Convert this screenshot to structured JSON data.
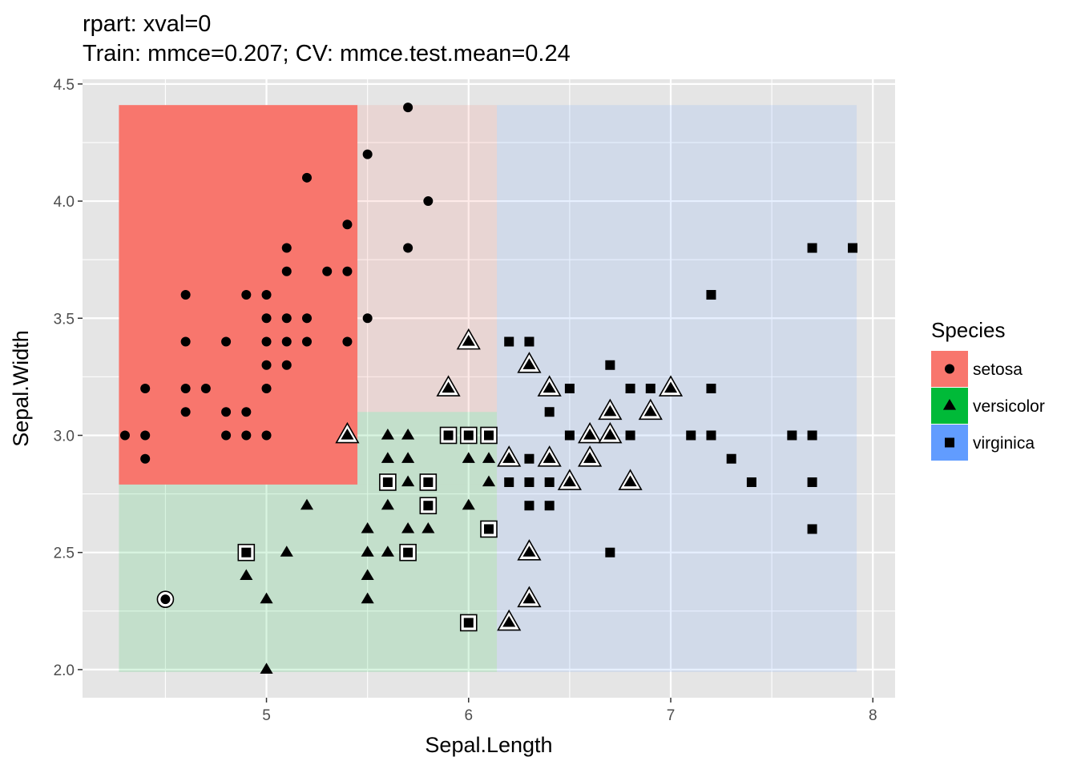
{
  "chart_data": {
    "type": "scatter",
    "title": "rpart: xval=0",
    "subtitle": "Train: mmce=0.207; CV: mmce.test.mean=0.24",
    "xlabel": "Sepal.Length",
    "ylabel": "Sepal.Width",
    "xlim": [
      4.09,
      8.11
    ],
    "ylim": [
      1.88,
      4.52
    ],
    "x_ticks": [
      5,
      6,
      7,
      8
    ],
    "x_tick_labels": [
      "5",
      "6",
      "7",
      "8"
    ],
    "y_ticks": [
      2.0,
      2.5,
      3.0,
      3.5,
      4.0,
      4.5
    ],
    "y_tick_labels": [
      "2.0",
      "2.5",
      "3.0",
      "3.5",
      "4.0",
      "4.5"
    ],
    "grid": true,
    "legend": {
      "title": "Species",
      "placement": "right",
      "entries": [
        {
          "label": "setosa",
          "shape": "circle",
          "color": "#f8766d"
        },
        {
          "label": "versicolor",
          "shape": "triangle",
          "color": "#00ba38"
        },
        {
          "label": "virginica",
          "shape": "square",
          "color": "#619cff"
        }
      ]
    },
    "colors": {
      "setosa": "#f8766d",
      "versicolor": "#00ba38",
      "virginica": "#619cff",
      "panel_background": "#e5e5e5",
      "grid": "#ffffff"
    },
    "regions": [
      {
        "class": "setosa",
        "x": [
          4.27,
          5.45
        ],
        "y": [
          2.79,
          4.41
        ],
        "alpha": 1.0
      },
      {
        "class": "setosa",
        "x": [
          5.45,
          6.14
        ],
        "y": [
          3.1,
          4.41
        ],
        "alpha": 0.15
      },
      {
        "class": "versicolor",
        "x": [
          4.27,
          6.14
        ],
        "y": [
          1.99,
          2.79
        ],
        "alpha": 0.15
      },
      {
        "class": "versicolor",
        "x": [
          5.45,
          6.14
        ],
        "y": [
          2.79,
          3.1
        ],
        "alpha": 0.15
      },
      {
        "class": "virginica",
        "x": [
          6.14,
          7.92
        ],
        "y": [
          1.99,
          4.41
        ],
        "alpha": 0.15
      }
    ],
    "series": [
      {
        "name": "setosa",
        "shape": "circle",
        "points": [
          [
            5.7,
            4.4
          ],
          [
            5.5,
            4.2
          ],
          [
            5.2,
            4.1
          ],
          [
            5.8,
            4.0
          ],
          [
            5.4,
            3.9
          ],
          [
            5.1,
            3.8
          ],
          [
            5.7,
            3.8
          ],
          [
            5.1,
            3.7
          ],
          [
            5.3,
            3.7
          ],
          [
            5.4,
            3.7
          ],
          [
            4.6,
            3.6
          ],
          [
            4.9,
            3.6
          ],
          [
            5.0,
            3.6
          ],
          [
            5.0,
            3.5
          ],
          [
            5.1,
            3.5
          ],
          [
            5.2,
            3.5
          ],
          [
            5.5,
            3.5
          ],
          [
            4.6,
            3.4
          ],
          [
            4.8,
            3.4
          ],
          [
            5.0,
            3.4
          ],
          [
            5.1,
            3.4
          ],
          [
            5.2,
            3.4
          ],
          [
            5.4,
            3.4
          ],
          [
            5.0,
            3.3
          ],
          [
            5.1,
            3.3
          ],
          [
            4.4,
            3.2
          ],
          [
            4.6,
            3.2
          ],
          [
            4.7,
            3.2
          ],
          [
            5.0,
            3.2
          ],
          [
            4.6,
            3.1
          ],
          [
            4.8,
            3.1
          ],
          [
            4.9,
            3.1
          ],
          [
            4.3,
            3.0
          ],
          [
            4.4,
            3.0
          ],
          [
            4.8,
            3.0
          ],
          [
            4.9,
            3.0
          ],
          [
            5.0,
            3.0
          ],
          [
            4.4,
            2.9
          ],
          [
            4.5,
            2.3
          ]
        ],
        "misclassified": [
          [
            4.5,
            2.3
          ]
        ]
      },
      {
        "name": "versicolor",
        "shape": "triangle",
        "points": [
          [
            6.0,
            3.4
          ],
          [
            5.9,
            3.2
          ],
          [
            6.3,
            3.3
          ],
          [
            6.4,
            3.2
          ],
          [
            6.7,
            3.1
          ],
          [
            6.9,
            3.1
          ],
          [
            7.0,
            3.2
          ],
          [
            5.4,
            3.0
          ],
          [
            5.6,
            3.0
          ],
          [
            5.7,
            3.0
          ],
          [
            6.6,
            3.0
          ],
          [
            6.7,
            3.0
          ],
          [
            5.6,
            2.9
          ],
          [
            5.7,
            2.9
          ],
          [
            6.0,
            2.9
          ],
          [
            6.1,
            2.9
          ],
          [
            6.2,
            2.9
          ],
          [
            6.4,
            2.9
          ],
          [
            6.6,
            2.9
          ],
          [
            5.7,
            2.8
          ],
          [
            5.8,
            2.8
          ],
          [
            6.1,
            2.8
          ],
          [
            6.5,
            2.8
          ],
          [
            6.8,
            2.8
          ],
          [
            5.2,
            2.7
          ],
          [
            5.6,
            2.7
          ],
          [
            6.0,
            2.7
          ],
          [
            5.5,
            2.6
          ],
          [
            5.7,
            2.6
          ],
          [
            5.8,
            2.6
          ],
          [
            5.1,
            2.5
          ],
          [
            5.5,
            2.5
          ],
          [
            5.6,
            2.5
          ],
          [
            6.3,
            2.5
          ],
          [
            4.9,
            2.4
          ],
          [
            5.5,
            2.4
          ],
          [
            5.0,
            2.3
          ],
          [
            5.5,
            2.3
          ],
          [
            6.3,
            2.3
          ],
          [
            6.2,
            2.2
          ],
          [
            5.0,
            2.0
          ]
        ],
        "misclassified": [
          [
            6.0,
            3.4
          ],
          [
            5.9,
            3.2
          ],
          [
            6.3,
            3.3
          ],
          [
            6.4,
            3.2
          ],
          [
            6.7,
            3.1
          ],
          [
            6.9,
            3.1
          ],
          [
            7.0,
            3.2
          ],
          [
            5.4,
            3.0
          ],
          [
            6.6,
            3.0
          ],
          [
            6.7,
            3.0
          ],
          [
            6.2,
            2.9
          ],
          [
            6.4,
            2.9
          ],
          [
            6.6,
            2.9
          ],
          [
            6.5,
            2.8
          ],
          [
            6.8,
            2.8
          ],
          [
            6.3,
            2.5
          ],
          [
            6.3,
            2.3
          ],
          [
            6.2,
            2.2
          ]
        ]
      },
      {
        "name": "virginica",
        "shape": "square",
        "points": [
          [
            7.7,
            3.8
          ],
          [
            7.9,
            3.8
          ],
          [
            7.2,
            3.6
          ],
          [
            6.2,
            3.4
          ],
          [
            6.3,
            3.4
          ],
          [
            6.7,
            3.3
          ],
          [
            6.4,
            3.1
          ],
          [
            6.5,
            3.2
          ],
          [
            6.8,
            3.2
          ],
          [
            6.9,
            3.2
          ],
          [
            7.2,
            3.2
          ],
          [
            5.9,
            3.0
          ],
          [
            6.0,
            3.0
          ],
          [
            6.1,
            3.0
          ],
          [
            6.5,
            3.0
          ],
          [
            6.8,
            3.0
          ],
          [
            7.1,
            3.0
          ],
          [
            7.2,
            3.0
          ],
          [
            7.6,
            3.0
          ],
          [
            7.7,
            3.0
          ],
          [
            6.3,
            2.9
          ],
          [
            7.3,
            2.9
          ],
          [
            5.6,
            2.8
          ],
          [
            5.8,
            2.8
          ],
          [
            6.2,
            2.8
          ],
          [
            6.3,
            2.8
          ],
          [
            6.4,
            2.8
          ],
          [
            7.4,
            2.8
          ],
          [
            7.7,
            2.8
          ],
          [
            5.8,
            2.7
          ],
          [
            6.3,
            2.7
          ],
          [
            6.4,
            2.7
          ],
          [
            6.1,
            2.6
          ],
          [
            7.7,
            2.6
          ],
          [
            4.9,
            2.5
          ],
          [
            5.7,
            2.5
          ],
          [
            6.7,
            2.5
          ],
          [
            6.0,
            2.2
          ]
        ],
        "misclassified": [
          [
            5.9,
            3.0
          ],
          [
            6.0,
            3.0
          ],
          [
            6.1,
            3.0
          ],
          [
            5.6,
            2.8
          ],
          [
            5.8,
            2.8
          ],
          [
            5.8,
            2.7
          ],
          [
            6.1,
            2.6
          ],
          [
            4.9,
            2.5
          ],
          [
            5.7,
            2.5
          ],
          [
            6.0,
            2.2
          ]
        ]
      }
    ]
  }
}
